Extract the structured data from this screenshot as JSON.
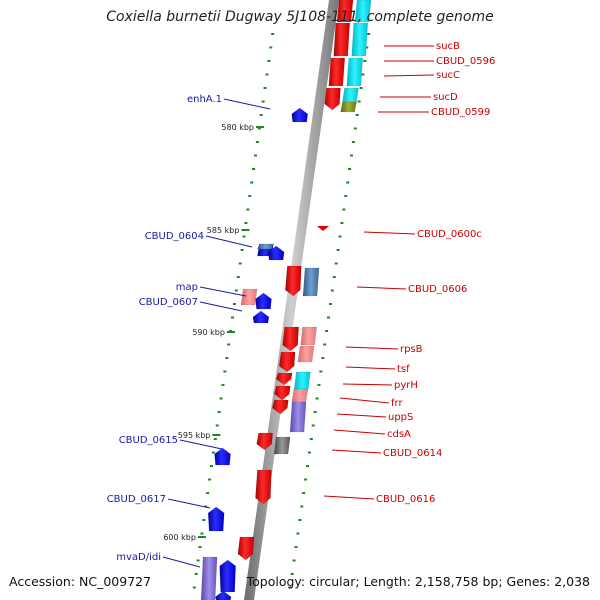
{
  "title": "Coxiella burnetii Dugway 5J108-111, complete genome",
  "accession": "Accession: NC_009727",
  "topology": "Topology: circular; Length: 2,158,758 bp; Genes: 2,038",
  "colors": {
    "forward_gene": "#ff0000",
    "reverse_gene": "#0000ff",
    "backbone": "#808080",
    "tick": "#008000",
    "label_forward": "#cc0000",
    "label_reverse": "#1a1aa6"
  },
  "kbp_markers": [
    "580 kbp",
    "585 kbp",
    "590 kbp",
    "595 kbp",
    "600 kbp"
  ],
  "forward_labels": [
    "sucB",
    "CBUD_0596",
    "sucC",
    "sucD",
    "CBUD_0599",
    "CBUD_0600c",
    "CBUD_0606",
    "rpsB",
    "tsf",
    "pyrH",
    "frr",
    "uppS",
    "cdsA",
    "CBUD_0614",
    "CBUD_0616"
  ],
  "reverse_labels": [
    "enhA.1",
    "CBUD_0604",
    "map",
    "CBUD_0607",
    "CBUD_0615",
    "CBUD_0617",
    "mvaD/idi"
  ]
}
